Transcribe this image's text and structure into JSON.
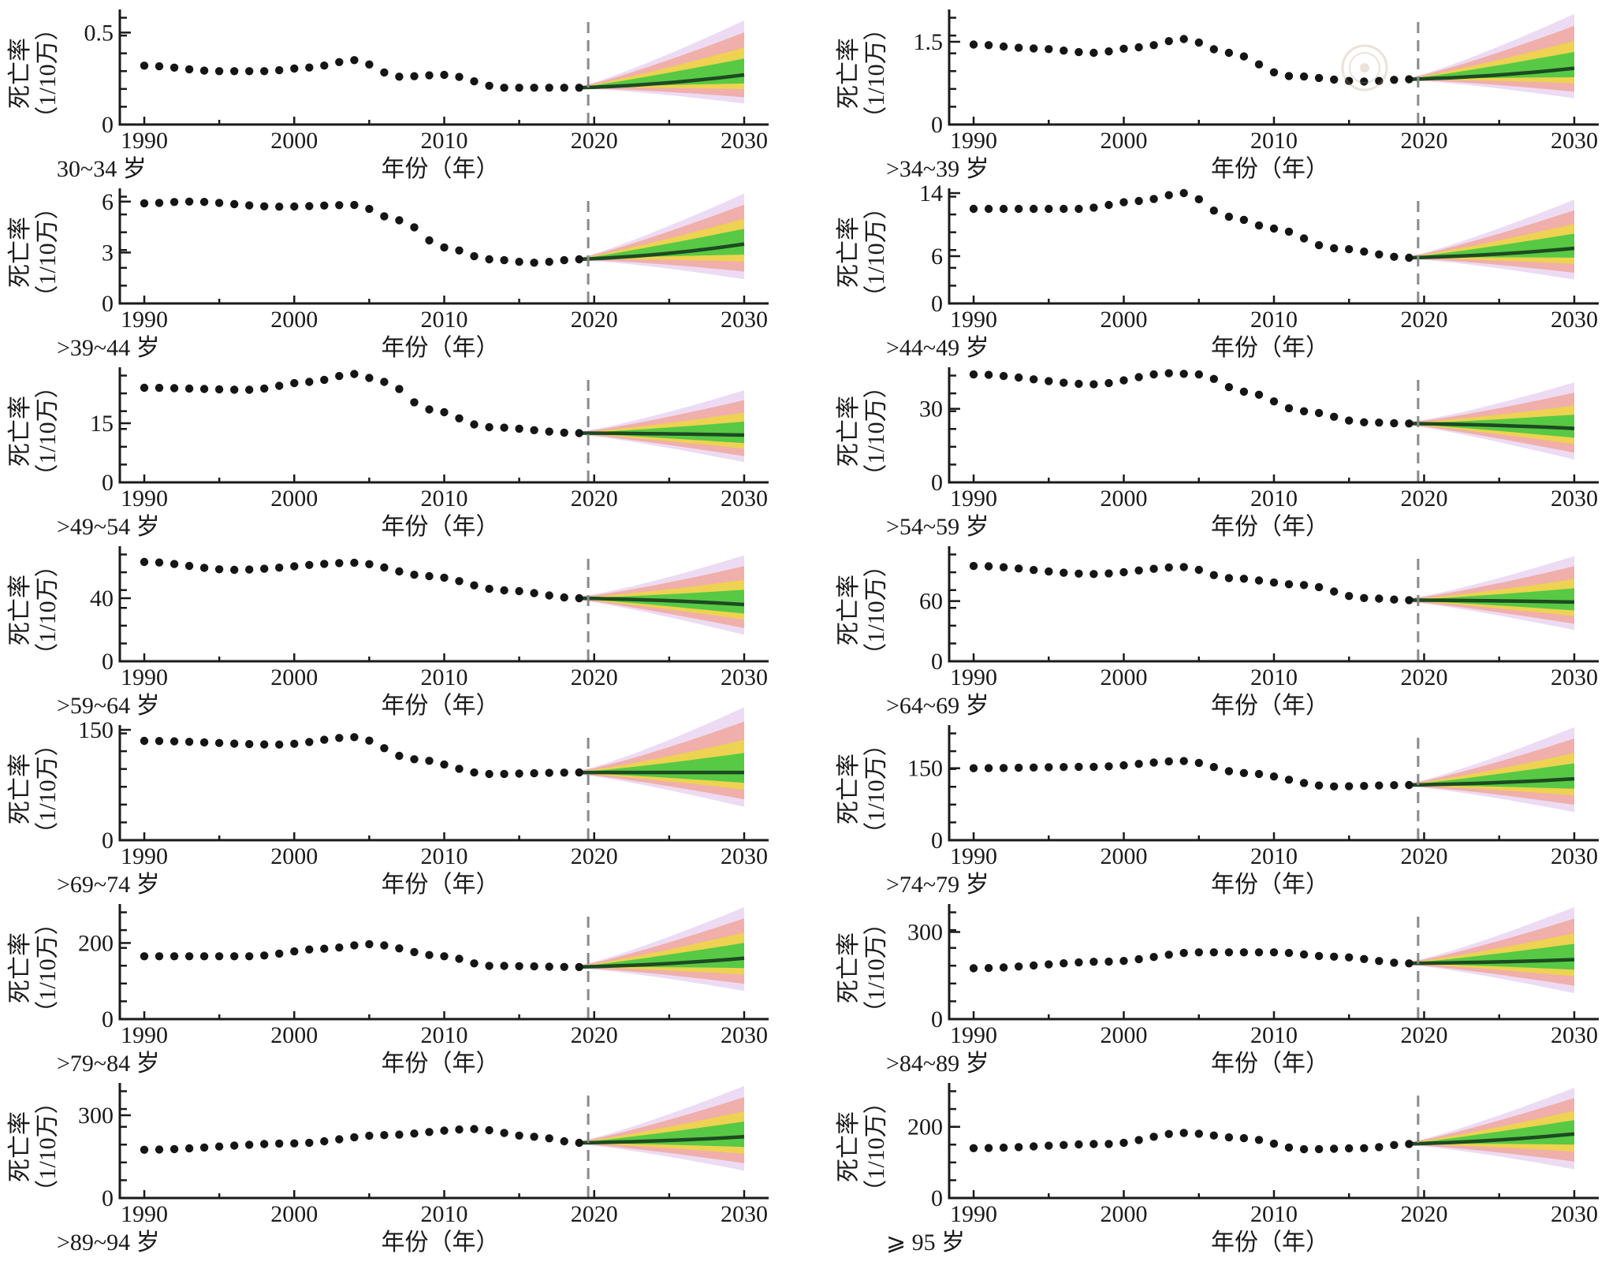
{
  "chart_data": {
    "type": "line",
    "x_axis": {
      "label": "年份（年）",
      "ticks": [
        "1990",
        "2000",
        "2010",
        "2020",
        "2030"
      ],
      "range": [
        1989,
        2031
      ]
    },
    "observed_years": [
      1990,
      2019
    ],
    "forecast_years": [
      2019,
      2030
    ],
    "forecast_start": 2019.6,
    "colors": {
      "observed": "#151515",
      "forecast_mean": "#1d4a22",
      "band_outer": "#d9b8e8",
      "band_mid": "#f48a70",
      "band_yellow": "#eedd33",
      "band_inner": "#46c842",
      "cutoff_line": "#8a8a8a"
    },
    "panels": [
      {
        "age_group": "30~34 岁",
        "ylabel_line1": "死亡率",
        "ylabel_line2": "（1/10万）",
        "ylim": [
          0,
          0.6
        ],
        "y_ticks": [
          "0",
          "0.5"
        ],
        "y_tick_values": [
          0,
          0.5
        ],
        "observed": [
          {
            "year": 1990,
            "value": 0.32
          },
          {
            "year": 1995,
            "value": 0.29
          },
          {
            "year": 1998,
            "value": 0.29
          },
          {
            "year": 2001,
            "value": 0.31
          },
          {
            "year": 2004,
            "value": 0.35
          },
          {
            "year": 2007,
            "value": 0.26
          },
          {
            "year": 2010,
            "value": 0.27
          },
          {
            "year": 2014,
            "value": 0.2
          },
          {
            "year": 2019,
            "value": 0.2
          }
        ],
        "forecast": {
          "mean_end": 0.27,
          "upper_end": 0.56,
          "lower_end": 0.12
        }
      },
      {
        "age_group": ">34~39 岁",
        "ylabel_line1": "死亡率",
        "ylabel_line2": "（1/10万）",
        "ylim": [
          0,
          2.0
        ],
        "y_ticks": [
          "0",
          "1.5"
        ],
        "y_tick_values": [
          0,
          1.5
        ],
        "observed": [
          {
            "year": 1990,
            "value": 1.45
          },
          {
            "year": 1994,
            "value": 1.38
          },
          {
            "year": 1998,
            "value": 1.3
          },
          {
            "year": 2001,
            "value": 1.4
          },
          {
            "year": 2004,
            "value": 1.55
          },
          {
            "year": 2007,
            "value": 1.3
          },
          {
            "year": 2011,
            "value": 0.88
          },
          {
            "year": 2016,
            "value": 0.78
          },
          {
            "year": 2019,
            "value": 0.82
          }
        ],
        "forecast": {
          "mean_end": 1.02,
          "upper_end": 1.98,
          "lower_end": 0.5
        }
      },
      {
        "age_group": ">39~44 岁",
        "ylabel_line1": "死亡率",
        "ylabel_line2": "（1/10万）",
        "ylim": [
          0,
          6.5
        ],
        "y_ticks": [
          "0",
          "3",
          "6"
        ],
        "y_tick_values": [
          0,
          3,
          6
        ],
        "observed": [
          {
            "year": 1990,
            "value": 5.9
          },
          {
            "year": 1993,
            "value": 6.0
          },
          {
            "year": 1999,
            "value": 5.7
          },
          {
            "year": 2004,
            "value": 5.8
          },
          {
            "year": 2007,
            "value": 4.9
          },
          {
            "year": 2010,
            "value": 3.3
          },
          {
            "year": 2013,
            "value": 2.6
          },
          {
            "year": 2016,
            "value": 2.4
          },
          {
            "year": 2019,
            "value": 2.6
          }
        ],
        "forecast": {
          "mean_end": 3.5,
          "upper_end": 6.4,
          "lower_end": 1.5
        }
      },
      {
        "age_group": ">44~49 岁",
        "ylabel_line1": "死亡率",
        "ylabel_line2": "（1/10万）",
        "ylim": [
          0,
          14
        ],
        "y_ticks": [
          "0",
          "6",
          "14"
        ],
        "y_tick_values": [
          0,
          6,
          14
        ],
        "observed": [
          {
            "year": 1990,
            "value": 12.0
          },
          {
            "year": 1997,
            "value": 12.0
          },
          {
            "year": 2001,
            "value": 13.0
          },
          {
            "year": 2004,
            "value": 14.0
          },
          {
            "year": 2007,
            "value": 11.0
          },
          {
            "year": 2010,
            "value": 9.5
          },
          {
            "year": 2014,
            "value": 7.0
          },
          {
            "year": 2019,
            "value": 5.8
          }
        ],
        "forecast": {
          "mean_end": 7.0,
          "upper_end": 13.0,
          "lower_end": 3.2
        }
      },
      {
        "age_group": ">49~54 岁",
        "ylabel_line1": "死亡率",
        "ylabel_line2": "（1/10万）",
        "ylim": [
          0,
          28
        ],
        "y_ticks": [
          "0",
          "15"
        ],
        "y_tick_values": [
          0,
          15
        ],
        "observed": [
          {
            "year": 1990,
            "value": 24.0
          },
          {
            "year": 1997,
            "value": 23.5
          },
          {
            "year": 2001,
            "value": 25.5
          },
          {
            "year": 2004,
            "value": 27.5
          },
          {
            "year": 2006,
            "value": 25.5
          },
          {
            "year": 2009,
            "value": 18.5
          },
          {
            "year": 2013,
            "value": 14.0
          },
          {
            "year": 2019,
            "value": 12.5
          }
        ],
        "forecast": {
          "mean_end": 12.0,
          "upper_end": 23.0,
          "lower_end": 5.5
        }
      },
      {
        "age_group": ">54~59 岁",
        "ylabel_line1": "死亡率",
        "ylabel_line2": "（1/10万）",
        "ylim": [
          0,
          45
        ],
        "y_ticks": [
          "0",
          "30"
        ],
        "y_tick_values": [
          0,
          30
        ],
        "observed": [
          {
            "year": 1990,
            "value": 44.0
          },
          {
            "year": 1998,
            "value": 40.0
          },
          {
            "year": 2003,
            "value": 44.5
          },
          {
            "year": 2005,
            "value": 44.0
          },
          {
            "year": 2008,
            "value": 37.0
          },
          {
            "year": 2012,
            "value": 29.0
          },
          {
            "year": 2016,
            "value": 24.5
          },
          {
            "year": 2019,
            "value": 24.0
          }
        ],
        "forecast": {
          "mean_end": 22.0,
          "upper_end": 40.0,
          "lower_end": 10.0
        }
      },
      {
        "age_group": ">59~64 岁",
        "ylabel_line1": "死亡率",
        "ylabel_line2": "（1/10万）",
        "ylim": [
          0,
          70
        ],
        "y_ticks": [
          "0",
          "40"
        ],
        "y_tick_values": [
          0,
          40
        ],
        "observed": [
          {
            "year": 1990,
            "value": 63.0
          },
          {
            "year": 1996,
            "value": 58.0
          },
          {
            "year": 2004,
            "value": 62.5
          },
          {
            "year": 2009,
            "value": 54.0
          },
          {
            "year": 2014,
            "value": 45.0
          },
          {
            "year": 2019,
            "value": 40.0
          }
        ],
        "forecast": {
          "mean_end": 36.0,
          "upper_end": 66.0,
          "lower_end": 18.0
        }
      },
      {
        "age_group": ">64~69 岁",
        "ylabel_line1": "死亡率",
        "ylabel_line2": "（1/10万）",
        "ylim": [
          0,
          110
        ],
        "y_ticks": [
          "0",
          "60"
        ],
        "y_tick_values": [
          0,
          60
        ],
        "observed": [
          {
            "year": 1990,
            "value": 95.0
          },
          {
            "year": 1998,
            "value": 87.0
          },
          {
            "year": 2004,
            "value": 94.0
          },
          {
            "year": 2007,
            "value": 83.0
          },
          {
            "year": 2012,
            "value": 76.0
          },
          {
            "year": 2016,
            "value": 63.0
          },
          {
            "year": 2019,
            "value": 61.0
          }
        ],
        "forecast": {
          "mean_end": 59.0,
          "upper_end": 103.0,
          "lower_end": 33.0
        }
      },
      {
        "age_group": ">69~74 岁",
        "ylabel_line1": "死亡率",
        "ylabel_line2": "（1/10万）",
        "ylim": [
          0,
          150
        ],
        "y_ticks": [
          "0",
          "150"
        ],
        "y_tick_values": [
          0,
          150
        ],
        "observed": [
          {
            "year": 1990,
            "value": 135.0
          },
          {
            "year": 1999,
            "value": 130.0
          },
          {
            "year": 2004,
            "value": 140.0
          },
          {
            "year": 2008,
            "value": 110.0
          },
          {
            "year": 2013,
            "value": 90.0
          },
          {
            "year": 2019,
            "value": 92.0
          }
        ],
        "forecast": {
          "mean_end": 92.0,
          "upper_end": 178.0,
          "lower_end": 48.0
        }
      },
      {
        "age_group": ">74~79 岁",
        "ylabel_line1": "死亡率",
        "ylabel_line2": "（1/10万）",
        "ylim": [
          0,
          230
        ],
        "y_ticks": [
          "0",
          "150"
        ],
        "y_tick_values": [
          0,
          150
        ],
        "observed": [
          {
            "year": 1990,
            "value": 150.0
          },
          {
            "year": 1998,
            "value": 153.0
          },
          {
            "year": 2004,
            "value": 165.0
          },
          {
            "year": 2008,
            "value": 140.0
          },
          {
            "year": 2014,
            "value": 112.0
          },
          {
            "year": 2019,
            "value": 115.0
          }
        ],
        "forecast": {
          "mean_end": 128.0,
          "upper_end": 232.0,
          "lower_end": 62.0
        }
      },
      {
        "age_group": ">79~84 岁",
        "ylabel_line1": "死亡率",
        "ylabel_line2": "（1/10万）",
        "ylim": [
          0,
          290
        ],
        "y_ticks": [
          "0",
          "200"
        ],
        "y_tick_values": [
          0,
          200
        ],
        "observed": [
          {
            "year": 1990,
            "value": 165.0
          },
          {
            "year": 1997,
            "value": 165.0
          },
          {
            "year": 2002,
            "value": 185.0
          },
          {
            "year": 2005,
            "value": 197.0
          },
          {
            "year": 2010,
            "value": 165.0
          },
          {
            "year": 2013,
            "value": 140.0
          },
          {
            "year": 2019,
            "value": 137.0
          }
        ],
        "forecast": {
          "mean_end": 160.0,
          "upper_end": 290.0,
          "lower_end": 78.0
        }
      },
      {
        "age_group": ">84~89 岁",
        "ylabel_line1": "死亡率",
        "ylabel_line2": "（1/10万）",
        "ylim": [
          0,
          380
        ],
        "y_ticks": [
          "0",
          "300"
        ],
        "y_tick_values": [
          0,
          300
        ],
        "observed": [
          {
            "year": 1990,
            "value": 175.0
          },
          {
            "year": 1999,
            "value": 198.0
          },
          {
            "year": 2005,
            "value": 230.0
          },
          {
            "year": 2010,
            "value": 230.0
          },
          {
            "year": 2014,
            "value": 215.0
          },
          {
            "year": 2019,
            "value": 192.0
          }
        ],
        "forecast": {
          "mean_end": 205.0,
          "upper_end": 380.0,
          "lower_end": 95.0
        }
      },
      {
        "age_group": ">89~94 岁",
        "ylabel_line1": "死亡率",
        "ylabel_line2": "（1/10万）",
        "ylim": [
          0,
          400
        ],
        "y_ticks": [
          "0",
          "300"
        ],
        "y_tick_values": [
          0,
          300
        ],
        "observed": [
          {
            "year": 1990,
            "value": 175.0
          },
          {
            "year": 2000,
            "value": 198.0
          },
          {
            "year": 2006,
            "value": 228.0
          },
          {
            "year": 2012,
            "value": 250.0
          },
          {
            "year": 2016,
            "value": 222.0
          },
          {
            "year": 2019,
            "value": 200.0
          }
        ],
        "forecast": {
          "mean_end": 222.0,
          "upper_end": 400.0,
          "lower_end": 105.0
        }
      },
      {
        "age_group": "⩾ 95 岁",
        "ylabel_line1": "死亡率",
        "ylabel_line2": "（1/10万）",
        "ylim": [
          0,
          310
        ],
        "y_ticks": [
          "0",
          "200"
        ],
        "y_tick_values": [
          0,
          200
        ],
        "observed": [
          {
            "year": 1990,
            "value": 140.0
          },
          {
            "year": 1999,
            "value": 152.0
          },
          {
            "year": 2004,
            "value": 183.0
          },
          {
            "year": 2008,
            "value": 168.0
          },
          {
            "year": 2012,
            "value": 137.0
          },
          {
            "year": 2016,
            "value": 140.0
          },
          {
            "year": 2019,
            "value": 152.0
          }
        ],
        "forecast": {
          "mean_end": 180.0,
          "upper_end": 305.0,
          "lower_end": 85.0
        }
      }
    ]
  }
}
